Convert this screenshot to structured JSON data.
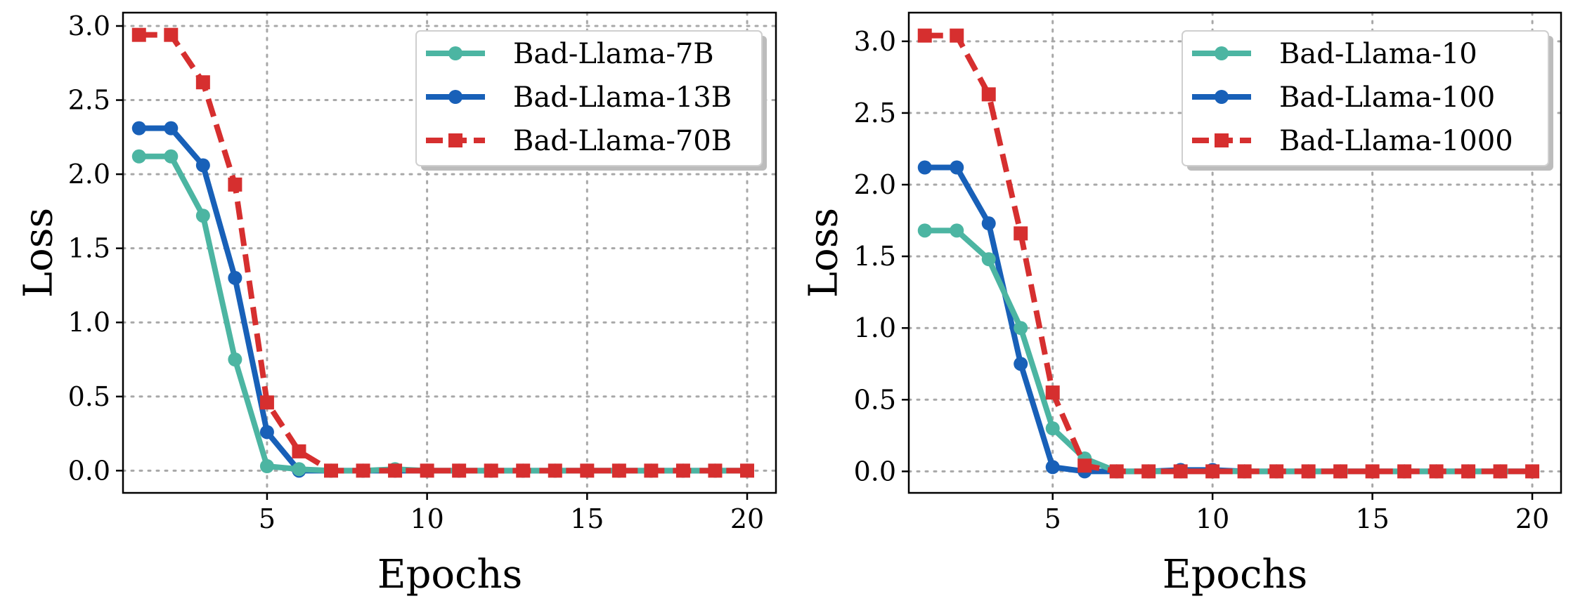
{
  "chart_data": [
    {
      "type": "line",
      "title": "",
      "xlabel": "Epochs",
      "ylabel": "Loss",
      "xlim": [
        0.5,
        20.9
      ],
      "ylim": [
        -0.15,
        3.09
      ],
      "xticks": [
        5,
        10,
        15,
        20
      ],
      "xtick_labels": [
        "5",
        "10",
        "15",
        "20"
      ],
      "yticks": [
        0.0,
        0.5,
        1.0,
        1.5,
        2.0,
        2.5,
        3.0
      ],
      "ytick_labels": [
        "0.0",
        "0.5",
        "1.0",
        "1.5",
        "2.0",
        "2.5",
        "3.0"
      ],
      "grid": true,
      "legend_position": "top-right",
      "x": [
        1,
        2,
        3,
        4,
        5,
        6,
        7,
        8,
        9,
        10,
        11,
        12,
        13,
        14,
        15,
        16,
        17,
        18,
        19,
        20
      ],
      "series": [
        {
          "name": "Bad-Llama-7B",
          "color": "#4cb5a2",
          "line_style": "solid",
          "marker": "circle",
          "values": [
            2.12,
            2.12,
            1.72,
            0.75,
            0.03,
            0.01,
            0.0,
            0.0,
            0.01,
            0.0,
            0.0,
            0.0,
            0.0,
            0.0,
            0.0,
            0.0,
            0.0,
            0.0,
            0.0,
            0.0
          ]
        },
        {
          "name": "Bad-Llama-13B",
          "color": "#1860b8",
          "line_style": "solid",
          "marker": "circle",
          "values": [
            2.31,
            2.31,
            2.06,
            1.3,
            0.26,
            0.0,
            0.0,
            0.0,
            0.0,
            0.0,
            0.0,
            0.0,
            0.0,
            0.0,
            0.0,
            0.0,
            0.0,
            0.0,
            0.0,
            0.0
          ]
        },
        {
          "name": "Bad-Llama-70B",
          "color": "#d62f2f",
          "line_style": "dashed",
          "marker": "square",
          "values": [
            2.94,
            2.94,
            2.62,
            1.93,
            0.46,
            0.13,
            0.0,
            0.0,
            0.0,
            0.0,
            0.0,
            0.0,
            0.0,
            0.0,
            0.0,
            0.0,
            0.0,
            0.0,
            0.0,
            0.0
          ]
        }
      ]
    },
    {
      "type": "line",
      "title": "",
      "xlabel": "Epochs",
      "ylabel": "Loss",
      "xlim": [
        0.5,
        20.9
      ],
      "ylim": [
        -0.15,
        3.2
      ],
      "xticks": [
        5,
        10,
        15,
        20
      ],
      "xtick_labels": [
        "5",
        "10",
        "15",
        "20"
      ],
      "yticks": [
        0.0,
        0.5,
        1.0,
        1.5,
        2.0,
        2.5,
        3.0
      ],
      "ytick_labels": [
        "0.0",
        "0.5",
        "1.0",
        "1.5",
        "2.0",
        "2.5",
        "3.0"
      ],
      "grid": true,
      "legend_position": "top-right",
      "x": [
        1,
        2,
        3,
        4,
        5,
        6,
        7,
        8,
        9,
        10,
        11,
        12,
        13,
        14,
        15,
        16,
        17,
        18,
        19,
        20
      ],
      "series": [
        {
          "name": "Bad-Llama-10",
          "color": "#4cb5a2",
          "line_style": "solid",
          "marker": "circle",
          "values": [
            1.68,
            1.68,
            1.48,
            1.0,
            0.3,
            0.09,
            0.0,
            0.0,
            0.0,
            0.0,
            0.0,
            0.0,
            0.0,
            0.0,
            0.0,
            0.0,
            0.0,
            0.0,
            0.0,
            0.0
          ]
        },
        {
          "name": "Bad-Llama-100",
          "color": "#1860b8",
          "line_style": "solid",
          "marker": "circle",
          "values": [
            2.12,
            2.12,
            1.73,
            0.75,
            0.03,
            0.0,
            0.0,
            0.0,
            0.01,
            0.01,
            0.0,
            0.0,
            0.0,
            0.0,
            0.0,
            0.0,
            0.0,
            0.0,
            0.0,
            0.0
          ]
        },
        {
          "name": "Bad-Llama-1000",
          "color": "#d62f2f",
          "line_style": "dashed",
          "marker": "square",
          "values": [
            3.04,
            3.04,
            2.63,
            1.66,
            0.55,
            0.04,
            0.0,
            0.0,
            0.0,
            0.0,
            0.0,
            0.0,
            0.0,
            0.0,
            0.0,
            0.0,
            0.0,
            0.0,
            0.0,
            0.0
          ]
        }
      ]
    }
  ]
}
